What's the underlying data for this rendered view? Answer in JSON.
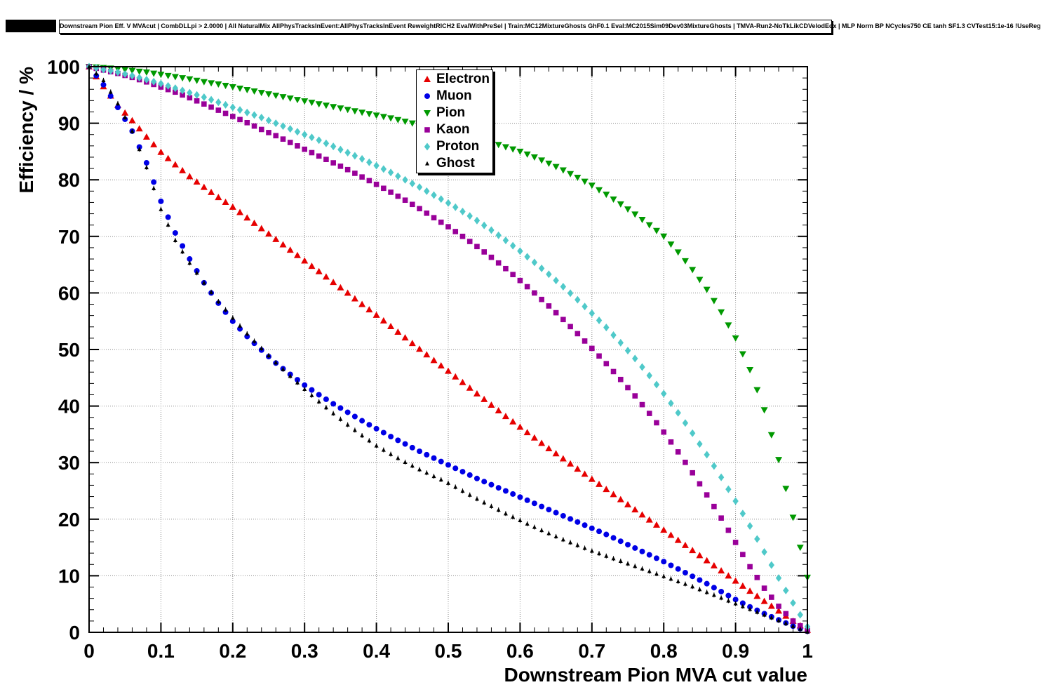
{
  "header": {
    "title": "Downstream Pion Eff. V MVAcut | CombDLLpi > 2.0000 | All NaturalMix AllPhysTracksInEvent:AllPhysTracksInEvent ReweightRICH2 EvalWithPreSel | Train:MC12MixtureGhosts GhF0.1 Eval:MC2015Sim09Dev03MixtureGhosts | TMVA-Run2-NoTkLikCDVelodEdx | MLP Norm BP NCycles750 CE tanh SF1.3 CVTest15:1e-16 !UseReg"
  },
  "chart_data": {
    "type": "scatter",
    "title": "",
    "xlabel": "Downstream Pion MVA cut value",
    "ylabel": "Efficiency / %",
    "xlim": [
      0,
      1
    ],
    "ylim": [
      0,
      100
    ],
    "grid": "dotted",
    "legend_position": "top-center",
    "x_tick_labels": [
      "0",
      "0.1",
      "0.2",
      "0.3",
      "0.4",
      "0.5",
      "0.6",
      "0.7",
      "0.8",
      "0.9",
      "1"
    ],
    "y_tick_labels": [
      "0",
      "10",
      "20",
      "30",
      "40",
      "50",
      "60",
      "70",
      "80",
      "90",
      "100"
    ],
    "x": [
      0,
      0.02,
      0.04,
      0.06,
      0.08,
      0.1,
      0.12,
      0.14,
      0.16,
      0.18,
      0.2,
      0.22,
      0.24,
      0.26,
      0.28,
      0.3,
      0.32,
      0.34,
      0.36,
      0.38,
      0.4,
      0.42,
      0.44,
      0.46,
      0.48,
      0.5,
      0.52,
      0.54,
      0.56,
      0.58,
      0.6,
      0.62,
      0.64,
      0.66,
      0.68,
      0.7,
      0.72,
      0.74,
      0.76,
      0.78,
      0.8,
      0.82,
      0.84,
      0.86,
      0.88,
      0.9,
      0.92,
      0.94,
      0.96,
      0.98,
      1.0
    ],
    "series": [
      {
        "name": "Electron",
        "color": "#e60000",
        "marker": "triangle-up",
        "values": [
          100,
          96.5,
          93.2,
          90.5,
          87.6,
          84.9,
          82.7,
          80.6,
          78.7,
          76.9,
          75.2,
          73.3,
          71.4,
          69.5,
          67.6,
          65.7,
          63.8,
          61.9,
          60.0,
          58.0,
          56.1,
          54.1,
          52.1,
          50.1,
          48.1,
          46.2,
          44.2,
          42.2,
          40.2,
          38.2,
          36.3,
          34.4,
          32.5,
          30.7,
          28.9,
          27.1,
          25.3,
          23.5,
          21.7,
          19.9,
          18.1,
          16.3,
          14.5,
          12.7,
          10.9,
          9.1,
          7.3,
          5.5,
          3.8,
          2.0,
          0.4
        ]
      },
      {
        "name": "Muon",
        "color": "#0000e6",
        "marker": "circle",
        "values": [
          100,
          96.8,
          92.8,
          88.6,
          83.0,
          76.2,
          70.6,
          66.0,
          61.8,
          58.2,
          55.0,
          52.3,
          49.9,
          47.6,
          45.6,
          43.7,
          42.0,
          40.4,
          38.9,
          37.4,
          36.0,
          34.6,
          33.3,
          32.0,
          30.8,
          29.6,
          28.4,
          27.2,
          26.1,
          25.0,
          23.9,
          22.8,
          21.7,
          20.6,
          19.5,
          18.4,
          17.3,
          16.1,
          14.9,
          13.7,
          12.5,
          11.2,
          9.9,
          8.6,
          7.2,
          5.8,
          4.5,
          3.3,
          2.2,
          1.1,
          0.2
        ]
      },
      {
        "name": "Pion",
        "color": "#009900",
        "marker": "triangle-down",
        "values": [
          100,
          99.8,
          99.6,
          99.3,
          99.0,
          98.6,
          98.2,
          97.8,
          97.3,
          96.9,
          96.4,
          95.9,
          95.4,
          94.9,
          94.4,
          93.9,
          93.4,
          92.9,
          92.4,
          91.9,
          91.4,
          90.9,
          90.3,
          89.7,
          89.1,
          88.5,
          87.9,
          87.2,
          86.6,
          85.8,
          85.0,
          84.0,
          82.9,
          81.7,
          80.4,
          79.0,
          77.4,
          75.7,
          73.9,
          72.0,
          70.0,
          67.2,
          64.1,
          60.6,
          56.6,
          52.0,
          46.4,
          39.3,
          30.5,
          20.3,
          9.7
        ]
      },
      {
        "name": "Kaon",
        "color": "#990099",
        "marker": "square",
        "values": [
          100,
          99.4,
          98.8,
          98.1,
          97.3,
          96.4,
          95.5,
          94.5,
          93.4,
          92.3,
          91.2,
          90.1,
          88.9,
          87.8,
          86.6,
          85.4,
          84.2,
          83.0,
          81.8,
          80.5,
          79.2,
          77.8,
          76.4,
          74.9,
          73.3,
          71.7,
          70.0,
          68.2,
          66.3,
          64.3,
          62.2,
          60.0,
          57.7,
          55.3,
          52.8,
          50.2,
          47.5,
          44.7,
          41.8,
          38.7,
          35.4,
          31.9,
          28.2,
          24.3,
          20.2,
          15.9,
          11.6,
          7.8,
          4.6,
          2.0,
          0.3
        ]
      },
      {
        "name": "Proton",
        "color": "#4fc9c9",
        "marker": "diamond",
        "values": [
          100,
          99.5,
          99.0,
          98.4,
          97.7,
          97.0,
          96.2,
          95.4,
          94.6,
          93.7,
          92.8,
          91.9,
          91.0,
          90.0,
          89.0,
          88.0,
          87.0,
          85.9,
          84.8,
          83.7,
          82.5,
          81.3,
          80.0,
          78.7,
          77.3,
          75.9,
          74.4,
          72.8,
          71.1,
          69.3,
          67.4,
          65.4,
          63.3,
          61.1,
          58.8,
          56.4,
          53.9,
          51.2,
          48.4,
          45.4,
          42.2,
          38.8,
          35.2,
          31.4,
          27.4,
          23.2,
          18.8,
          14.2,
          9.6,
          5.2,
          1.0
        ]
      },
      {
        "name": "Ghost",
        "color": "#000000",
        "marker": "small-triangle-up",
        "values": [
          100,
          97.6,
          93.5,
          88.6,
          82.2,
          74.8,
          69.3,
          65.3,
          61.8,
          58.5,
          55.6,
          52.8,
          50.2,
          47.7,
          45.3,
          43.0,
          40.8,
          38.7,
          36.7,
          34.8,
          33.0,
          31.5,
          30.1,
          28.8,
          27.6,
          26.4,
          25.0,
          23.6,
          22.3,
          21.0,
          19.8,
          18.6,
          17.5,
          16.4,
          15.4,
          14.4,
          13.5,
          12.6,
          11.7,
          10.8,
          9.9,
          9.0,
          8.1,
          7.1,
          6.1,
          5.1,
          4.1,
          3.1,
          2.1,
          1.1,
          0.1
        ]
      }
    ]
  }
}
